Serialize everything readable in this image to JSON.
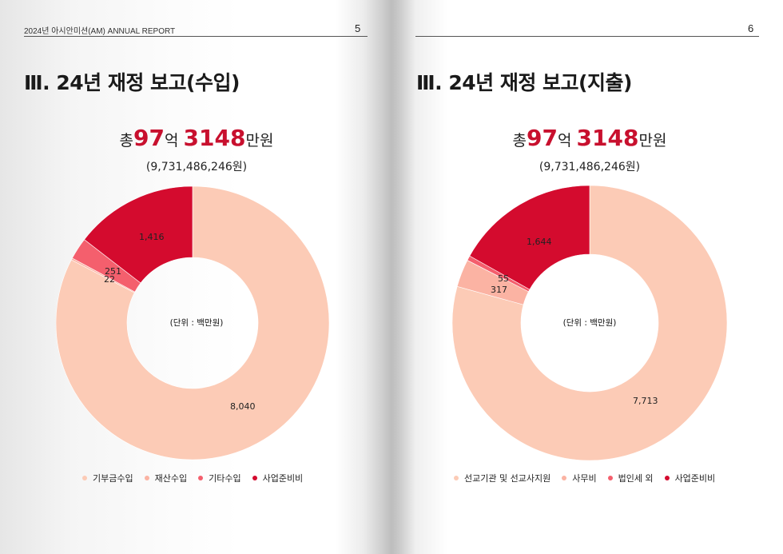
{
  "colors": {
    "accent": "#c8102e",
    "slice1": "#fccbb6",
    "slice2": "#fbb3a3",
    "slice3": "#f45f6d",
    "slice4": "#d40b2e"
  },
  "left_page": {
    "header_text": "2024년 아시안미션(AM) ANNUAL REPORT",
    "page_number": "5",
    "title": "Ⅲ. 24년 재정 보고(수입)",
    "total": {
      "prefix": "총",
      "num1": "97",
      "mid": "억 ",
      "num2": "3148",
      "suffix": "만원"
    },
    "total_exact": "(9,731,486,246원)",
    "unit_label": "(단위 : 백만원)"
  },
  "right_page": {
    "page_number": "6",
    "title": "Ⅲ. 24년 재정 보고(지출)",
    "total": {
      "prefix": "총",
      "num1": "97",
      "mid": "억 ",
      "num2": "3148",
      "suffix": "만원"
    },
    "total_exact": "(9,731,486,246원)",
    "unit_label": "(단위 : 백만원)"
  },
  "chart_data": [
    {
      "type": "pie",
      "variant": "donut",
      "categories": [
        "기부금수입",
        "재산수입",
        "기타수입",
        "사업준비비"
      ],
      "values": [
        8040,
        22,
        251,
        1416
      ],
      "labels": [
        "8,040",
        "22",
        "251",
        "1,416"
      ],
      "legend_position": "bottom"
    },
    {
      "type": "pie",
      "variant": "donut",
      "categories": [
        "선교기관 및 선교사지원",
        "사무비",
        "법인세 외",
        "사업준비비"
      ],
      "values": [
        7713,
        317,
        55,
        1644
      ],
      "labels": [
        "7,713",
        "317",
        "55",
        "1,644"
      ],
      "legend_position": "bottom"
    }
  ]
}
